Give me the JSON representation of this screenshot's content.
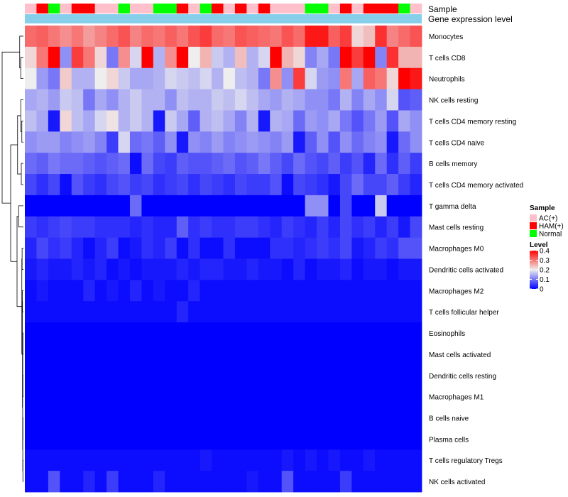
{
  "chart_data": {
    "type": "heatmap",
    "title": "",
    "annotation_track_labels": [
      "Sample",
      "Gene expression level"
    ],
    "legend": {
      "sample_title": "Sample",
      "sample_entries": [
        {
          "label": "AC(+)",
          "color": "#ffc0cb"
        },
        {
          "label": "HAM(+)",
          "color": "#ff0000"
        },
        {
          "label": "Normal",
          "color": "#00ff00"
        }
      ],
      "level_title": "Level",
      "level_ticks": [
        "0.4",
        "0.3",
        "0.2",
        "0.1",
        "0"
      ]
    },
    "color_scale": {
      "low": "#0000ff",
      "mid": "#eeeeee",
      "high": "#ff0000",
      "min": 0,
      "max": 0.4
    },
    "gene_expression_color": "#87ceeb",
    "sample_groups": [
      "AC",
      "HAM",
      "Normal",
      "AC",
      "HAM",
      "HAM",
      "AC",
      "AC",
      "Normal",
      "AC",
      "AC",
      "Normal",
      "Normal",
      "HAM",
      "AC",
      "Normal",
      "HAM",
      "AC",
      "HAM",
      "AC",
      "HAM",
      "AC",
      "AC",
      "AC",
      "Normal",
      "Normal",
      "AC",
      "HAM",
      "AC",
      "HAM",
      "HAM",
      "HAM",
      "Normal",
      "AC"
    ],
    "rows": [
      {
        "name": "Monocytes",
        "values": [
          0.31,
          0.32,
          0.3,
          0.28,
          0.3,
          0.27,
          0.29,
          0.31,
          0.33,
          0.29,
          0.31,
          0.3,
          0.32,
          0.3,
          0.33,
          0.35,
          0.31,
          0.3,
          0.33,
          0.32,
          0.31,
          0.3,
          0.33,
          0.31,
          0.38,
          0.38,
          0.32,
          0.35,
          0.22,
          0.24,
          0.36,
          0.29,
          0.31,
          0.33
        ]
      },
      {
        "name": "T cells CD8",
        "values": [
          0.22,
          0.3,
          0.4,
          0.12,
          0.35,
          0.3,
          0.22,
          0.1,
          0.28,
          0.18,
          0.4,
          0.15,
          0.28,
          0.4,
          0.2,
          0.25,
          0.17,
          0.15,
          0.24,
          0.15,
          0.18,
          0.4,
          0.25,
          0.22,
          0.11,
          0.14,
          0.1,
          0.4,
          0.35,
          0.4,
          0.11,
          0.36,
          0.25,
          0.25
        ]
      },
      {
        "name": "Neutrophils",
        "values": [
          0.2,
          0.13,
          0.1,
          0.23,
          0.15,
          0.15,
          0.2,
          0.22,
          0.17,
          0.14,
          0.14,
          0.15,
          0.18,
          0.17,
          0.16,
          0.18,
          0.15,
          0.2,
          0.16,
          0.15,
          0.1,
          0.28,
          0.12,
          0.35,
          0.18,
          0.13,
          0.12,
          0.3,
          0.14,
          0.32,
          0.3,
          0.22,
          0.4,
          0.38
        ]
      },
      {
        "name": "NK cells resting",
        "values": [
          0.14,
          0.15,
          0.13,
          0.17,
          0.16,
          0.1,
          0.14,
          0.12,
          0.15,
          0.17,
          0.15,
          0.15,
          0.12,
          0.16,
          0.15,
          0.15,
          0.17,
          0.16,
          0.18,
          0.16,
          0.14,
          0.13,
          0.15,
          0.14,
          0.12,
          0.12,
          0.1,
          0.15,
          0.11,
          0.14,
          0.12,
          0.18,
          0.07,
          0.08
        ]
      },
      {
        "name": "T cells CD4 memory resting",
        "values": [
          0.16,
          0.14,
          0.02,
          0.22,
          0.16,
          0.14,
          0.18,
          0.21,
          0.15,
          0.17,
          0.15,
          0.02,
          0.17,
          0.14,
          0.08,
          0.15,
          0.16,
          0.14,
          0.11,
          0.15,
          0.02,
          0.15,
          0.14,
          0.09,
          0.13,
          0.12,
          0.14,
          0.1,
          0.07,
          0.1,
          0.13,
          0.07,
          0.14,
          0.12
        ]
      },
      {
        "name": "T cells CD4 naive",
        "values": [
          0.12,
          0.13,
          0.13,
          0.11,
          0.12,
          0.13,
          0.11,
          0.05,
          0.18,
          0.09,
          0.1,
          0.08,
          0.12,
          0.02,
          0.12,
          0.11,
          0.13,
          0.11,
          0.12,
          0.13,
          0.12,
          0.11,
          0.13,
          0.02,
          0.08,
          0.12,
          0.07,
          0.12,
          0.09,
          0.11,
          0.12,
          0.02,
          0.09,
          0.12
        ]
      },
      {
        "name": "B cells memory",
        "values": [
          0.09,
          0.08,
          0.1,
          0.09,
          0.09,
          0.08,
          0.07,
          0.08,
          0.09,
          0.01,
          0.09,
          0.06,
          0.05,
          0.08,
          0.07,
          0.07,
          0.08,
          0.09,
          0.07,
          0.08,
          0.1,
          0.08,
          0.06,
          0.09,
          0.07,
          0.06,
          0.08,
          0.05,
          0.07,
          0.03,
          0.09,
          0.04,
          0.08,
          0.05
        ]
      },
      {
        "name": "T cells CD4 memory activated",
        "values": [
          0.06,
          0.04,
          0.06,
          0.01,
          0.07,
          0.05,
          0.04,
          0.06,
          0.07,
          0.05,
          0.06,
          0.04,
          0.05,
          0.06,
          0.04,
          0.06,
          0.05,
          0.04,
          0.06,
          0.05,
          0.05,
          0.07,
          0.01,
          0.06,
          0.05,
          0.04,
          0.02,
          0.06,
          0.09,
          0.06,
          0.06,
          0.08,
          0.05,
          0.03
        ]
      },
      {
        "name": "T gamma delta",
        "values": [
          0,
          0,
          0,
          0,
          0,
          0,
          0,
          0,
          0,
          0.09,
          0,
          0,
          0,
          0,
          0,
          0,
          0,
          0,
          0,
          0,
          0,
          0,
          0,
          0,
          0.12,
          0.12,
          0,
          0.06,
          0,
          0,
          0.17,
          0,
          0,
          0
        ]
      },
      {
        "name": "Mast cells resting",
        "values": [
          0.05,
          0.04,
          0.05,
          0.06,
          0.05,
          0.05,
          0.04,
          0.04,
          0.04,
          0.03,
          0.04,
          0.03,
          0.03,
          0.08,
          0.04,
          0.05,
          0.04,
          0.04,
          0.05,
          0.05,
          0.04,
          0.03,
          0.05,
          0.04,
          0.03,
          0.05,
          0.03,
          0.06,
          0.04,
          0.05,
          0.03,
          0.05,
          0.02,
          0.06
        ]
      },
      {
        "name": "Macrophages M0",
        "values": [
          0.03,
          0.06,
          0.04,
          0.05,
          0.03,
          0.01,
          0.03,
          0.05,
          0.01,
          0.02,
          0.04,
          0.03,
          0.05,
          0.01,
          0.04,
          0.01,
          0.01,
          0.04,
          0.01,
          0.01,
          0.01,
          0.04,
          0.04,
          0.03,
          0.04,
          0.05,
          0.04,
          0.06,
          0.02,
          0.03,
          0.05,
          0.04,
          0.07,
          0.07
        ]
      },
      {
        "name": "Dendritic cells activated",
        "values": [
          0.02,
          0.03,
          0.02,
          0.02,
          0.03,
          0.02,
          0.03,
          0.01,
          0.02,
          0.01,
          0.02,
          0.02,
          0.02,
          0.03,
          0.02,
          0.03,
          0.03,
          0.02,
          0.02,
          0.03,
          0.02,
          0.02,
          0.01,
          0.03,
          0.01,
          0.02,
          0.02,
          0.03,
          0.01,
          0.02,
          0.02,
          0.01,
          0.02,
          0.02
        ]
      },
      {
        "name": "Macrophages M2",
        "values": [
          0.01,
          0.02,
          0.01,
          0.01,
          0.01,
          0.03,
          0.01,
          0.02,
          0.01,
          0.03,
          0.01,
          0.02,
          0.01,
          0.01,
          0.03,
          0.01,
          0.01,
          0.01,
          0.01,
          0.01,
          0.01,
          0.01,
          0.01,
          0.01,
          0.01,
          0.01,
          0.01,
          0.01,
          0.01,
          0.01,
          0.01,
          0.01,
          0.01,
          0.01
        ]
      },
      {
        "name": "T cells follicular helper",
        "values": [
          0.01,
          0.01,
          0.01,
          0.01,
          0.01,
          0.01,
          0.01,
          0.01,
          0.01,
          0.01,
          0.01,
          0.01,
          0.01,
          0.03,
          0.01,
          0.01,
          0.01,
          0.01,
          0.01,
          0.01,
          0.01,
          0.01,
          0.01,
          0.01,
          0.01,
          0.01,
          0.01,
          0.01,
          0.01,
          0.01,
          0.01,
          0.01,
          0.01,
          0.01
        ]
      },
      {
        "name": "Eosinophils",
        "values": [
          0,
          0,
          0,
          0,
          0,
          0,
          0,
          0,
          0,
          0,
          0,
          0,
          0,
          0,
          0,
          0,
          0,
          0,
          0,
          0,
          0,
          0,
          0,
          0,
          0,
          0,
          0,
          0,
          0,
          0,
          0,
          0,
          0,
          0
        ]
      },
      {
        "name": "Mast cells activated",
        "values": [
          0,
          0,
          0,
          0,
          0,
          0,
          0,
          0,
          0,
          0,
          0,
          0,
          0,
          0,
          0,
          0,
          0,
          0,
          0,
          0,
          0,
          0,
          0,
          0,
          0,
          0,
          0,
          0,
          0,
          0,
          0,
          0,
          0,
          0
        ]
      },
      {
        "name": "Dendritic cells resting",
        "values": [
          0,
          0,
          0,
          0,
          0,
          0,
          0,
          0,
          0,
          0,
          0,
          0,
          0,
          0,
          0,
          0,
          0,
          0,
          0,
          0,
          0,
          0,
          0,
          0,
          0,
          0,
          0,
          0,
          0,
          0,
          0,
          0,
          0,
          0
        ]
      },
      {
        "name": "Macrophages M1",
        "values": [
          0,
          0,
          0,
          0,
          0,
          0,
          0,
          0,
          0,
          0,
          0,
          0,
          0,
          0,
          0,
          0,
          0,
          0,
          0,
          0,
          0,
          0,
          0,
          0,
          0,
          0,
          0,
          0,
          0,
          0,
          0,
          0,
          0,
          0
        ]
      },
      {
        "name": "B cells naive",
        "values": [
          0,
          0,
          0,
          0,
          0,
          0,
          0,
          0,
          0,
          0,
          0,
          0,
          0,
          0,
          0,
          0,
          0,
          0,
          0,
          0,
          0,
          0,
          0,
          0,
          0,
          0,
          0,
          0,
          0,
          0,
          0,
          0,
          0,
          0
        ]
      },
      {
        "name": "Plasma cells",
        "values": [
          0,
          0,
          0,
          0,
          0,
          0,
          0,
          0,
          0,
          0,
          0,
          0,
          0,
          0,
          0,
          0,
          0,
          0,
          0,
          0,
          0,
          0,
          0,
          0,
          0,
          0,
          0,
          0,
          0,
          0,
          0,
          0,
          0,
          0
        ]
      },
      {
        "name": "T cells regulatory  Tregs",
        "values": [
          0.01,
          0.01,
          0.01,
          0.01,
          0.01,
          0.01,
          0.01,
          0.01,
          0.01,
          0.01,
          0.01,
          0.01,
          0.01,
          0.01,
          0.01,
          0.02,
          0.01,
          0.01,
          0.01,
          0.01,
          0.01,
          0.01,
          0.02,
          0.01,
          0.02,
          0.01,
          0.02,
          0.01,
          0.01,
          0.02,
          0.01,
          0.01,
          0.01,
          0.01
        ]
      },
      {
        "name": "NK cells activated",
        "values": [
          0.01,
          0.01,
          0.07,
          0.01,
          0.01,
          0.03,
          0.01,
          0.05,
          0.01,
          0.01,
          0.01,
          0.03,
          0.01,
          0.01,
          0.01,
          0.01,
          0.01,
          0.01,
          0.01,
          0.02,
          0.01,
          0.01,
          0.07,
          0.01,
          0.01,
          0.01,
          0.01,
          0.05,
          0.01,
          0.01,
          0.01,
          0.01,
          0.01,
          0.01
        ]
      }
    ],
    "dendrogram": {
      "merges": [
        [
          1,
          2
        ],
        [
          0,
          "m0"
        ],
        [
          4,
          5
        ],
        [
          3,
          "m2"
        ],
        [
          6,
          7
        ],
        [
          "m3",
          "m4"
        ],
        [
          8,
          9
        ],
        [
          10,
          11
        ],
        [
          12,
          13
        ],
        [
          14,
          15
        ],
        [
          16,
          17
        ],
        [
          18,
          19
        ],
        [
          20,
          21
        ],
        [
          "m9",
          "m10"
        ],
        [
          "m11",
          "m12"
        ],
        [
          "m13",
          "m14"
        ],
        [
          "m8",
          "m15"
        ],
        [
          "m7",
          "m16"
        ],
        [
          "m6",
          "m17"
        ],
        [
          "m5",
          "m18"
        ],
        [
          "m1",
          "m19"
        ]
      ],
      "heights": [
        0.05,
        0.07,
        0.03,
        0.05,
        0.04,
        0.11,
        0.09,
        0.025,
        0.02,
        0.01,
        0.01,
        0.01,
        0.01,
        0.012,
        0.012,
        0.014,
        0.018,
        0.03,
        0.12,
        0.24,
        0.4
      ]
    }
  }
}
